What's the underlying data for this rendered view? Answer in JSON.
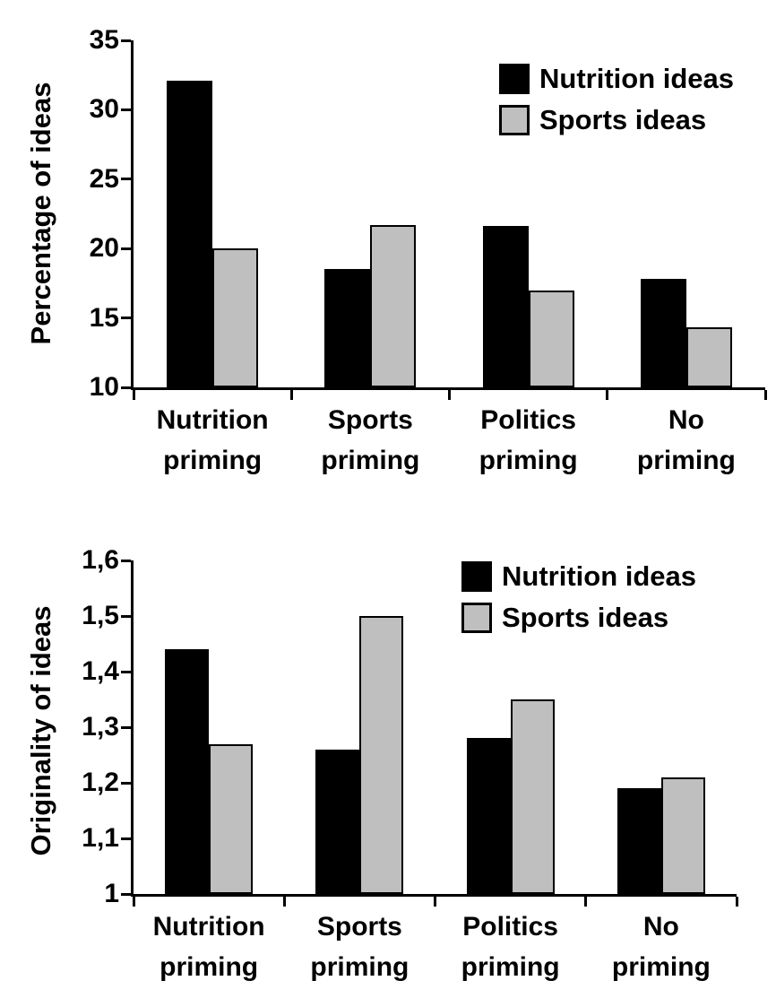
{
  "background": "#ffffff",
  "colors": {
    "axis": "#000000",
    "nutrition_series": "#000000",
    "sports_series": "#bfbfbf"
  },
  "chart_data": [
    {
      "type": "bar",
      "title": "",
      "ylabel": "Percentage of ideas",
      "xlabel": "",
      "categories": [
        "Nutrition priming",
        "Sports priming",
        "Politics priming",
        "No priming"
      ],
      "series": [
        {
          "name": "Nutrition ideas",
          "color": "#000000",
          "values": [
            32.1,
            18.5,
            21.6,
            17.8
          ]
        },
        {
          "name": "Sports ideas",
          "color": "#bfbfbf",
          "values": [
            20.0,
            21.7,
            17.0,
            14.3
          ]
        }
      ],
      "ylim": [
        10,
        35
      ],
      "yticks": [
        {
          "value": 35,
          "label": "35"
        },
        {
          "value": 30,
          "label": "30"
        },
        {
          "value": 25,
          "label": "25"
        },
        {
          "value": 20,
          "label": "20"
        },
        {
          "value": 15,
          "label": "15"
        },
        {
          "value": 10,
          "label": "10"
        }
      ],
      "grid": false,
      "legend_position": "top-right-inside"
    },
    {
      "type": "bar",
      "title": "",
      "ylabel": "Originality of ideas",
      "xlabel": "",
      "categories": [
        "Nutrition priming",
        "Sports priming",
        "Politics priming",
        "No priming"
      ],
      "series": [
        {
          "name": "Nutrition ideas",
          "color": "#000000",
          "values": [
            1.44,
            1.26,
            1.28,
            1.19
          ]
        },
        {
          "name": "Sports ideas",
          "color": "#bfbfbf",
          "values": [
            1.27,
            1.5,
            1.35,
            1.21
          ]
        }
      ],
      "ylim": [
        1,
        1.6
      ],
      "decimal_separator": ",",
      "yticks": [
        {
          "value": 1.6,
          "label": "1,6"
        },
        {
          "value": 1.5,
          "label": "1,5"
        },
        {
          "value": 1.4,
          "label": "1,4"
        },
        {
          "value": 1.3,
          "label": "1,3"
        },
        {
          "value": 1.2,
          "label": "1,2"
        },
        {
          "value": 1.1,
          "label": "1,1"
        },
        {
          "value": 1.0,
          "label": "1"
        }
      ],
      "grid": false,
      "legend_position": "top-right-inside"
    }
  ]
}
